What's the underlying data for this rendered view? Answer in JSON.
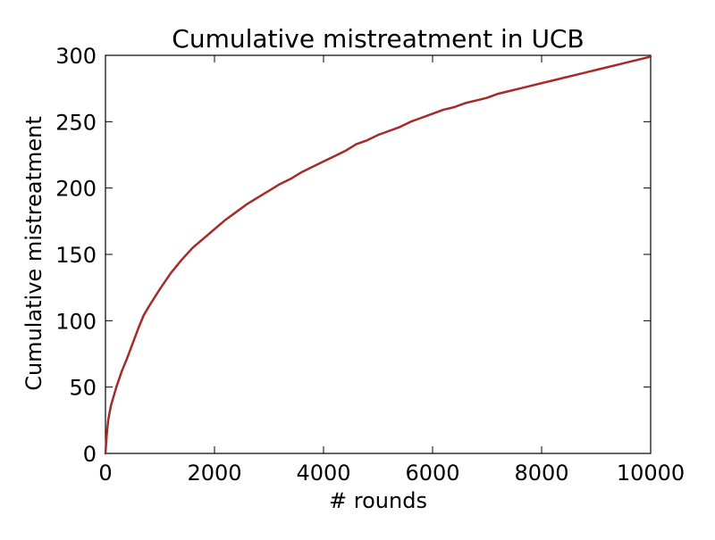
{
  "chart_data": {
    "type": "line",
    "title": "Cumulative mistreatment in UCB",
    "xlabel": "# rounds",
    "ylabel": "Cumulative mistreatment",
    "xlim": [
      0,
      10000
    ],
    "ylim": [
      0,
      300
    ],
    "xticks": [
      0,
      2000,
      4000,
      6000,
      8000,
      10000
    ],
    "yticks": [
      0,
      50,
      100,
      150,
      200,
      250,
      300
    ],
    "grid": false,
    "legend": "none",
    "series": [
      {
        "color": "#a52a2a",
        "x": [
          0,
          25,
          50,
          100,
          200,
          300,
          400,
          500,
          600,
          700,
          800,
          1000,
          1200,
          1400,
          1600,
          1800,
          2000,
          2200,
          2400,
          2600,
          2800,
          3000,
          3200,
          3400,
          3600,
          3800,
          4000,
          4200,
          4400,
          4600,
          4800,
          5000,
          5200,
          5400,
          5600,
          5800,
          6000,
          6200,
          6400,
          6600,
          6800,
          7000,
          7200,
          7400,
          7600,
          7800,
          8000,
          8200,
          8400,
          8600,
          8800,
          9000,
          9200,
          9400,
          9600,
          9800,
          10000
        ],
        "y": [
          0,
          15,
          25,
          36,
          50,
          62,
          72,
          83,
          94,
          104,
          111,
          124,
          136,
          146,
          155,
          162,
          169,
          176,
          182,
          188,
          193,
          198,
          203,
          207,
          212,
          216,
          220,
          224,
          228,
          233,
          236,
          240,
          243,
          246,
          250,
          253,
          256,
          259,
          261,
          264,
          266,
          268,
          271,
          273,
          275,
          277,
          279,
          281,
          283,
          285,
          287,
          289,
          291,
          293,
          295,
          297,
          299
        ]
      }
    ]
  }
}
